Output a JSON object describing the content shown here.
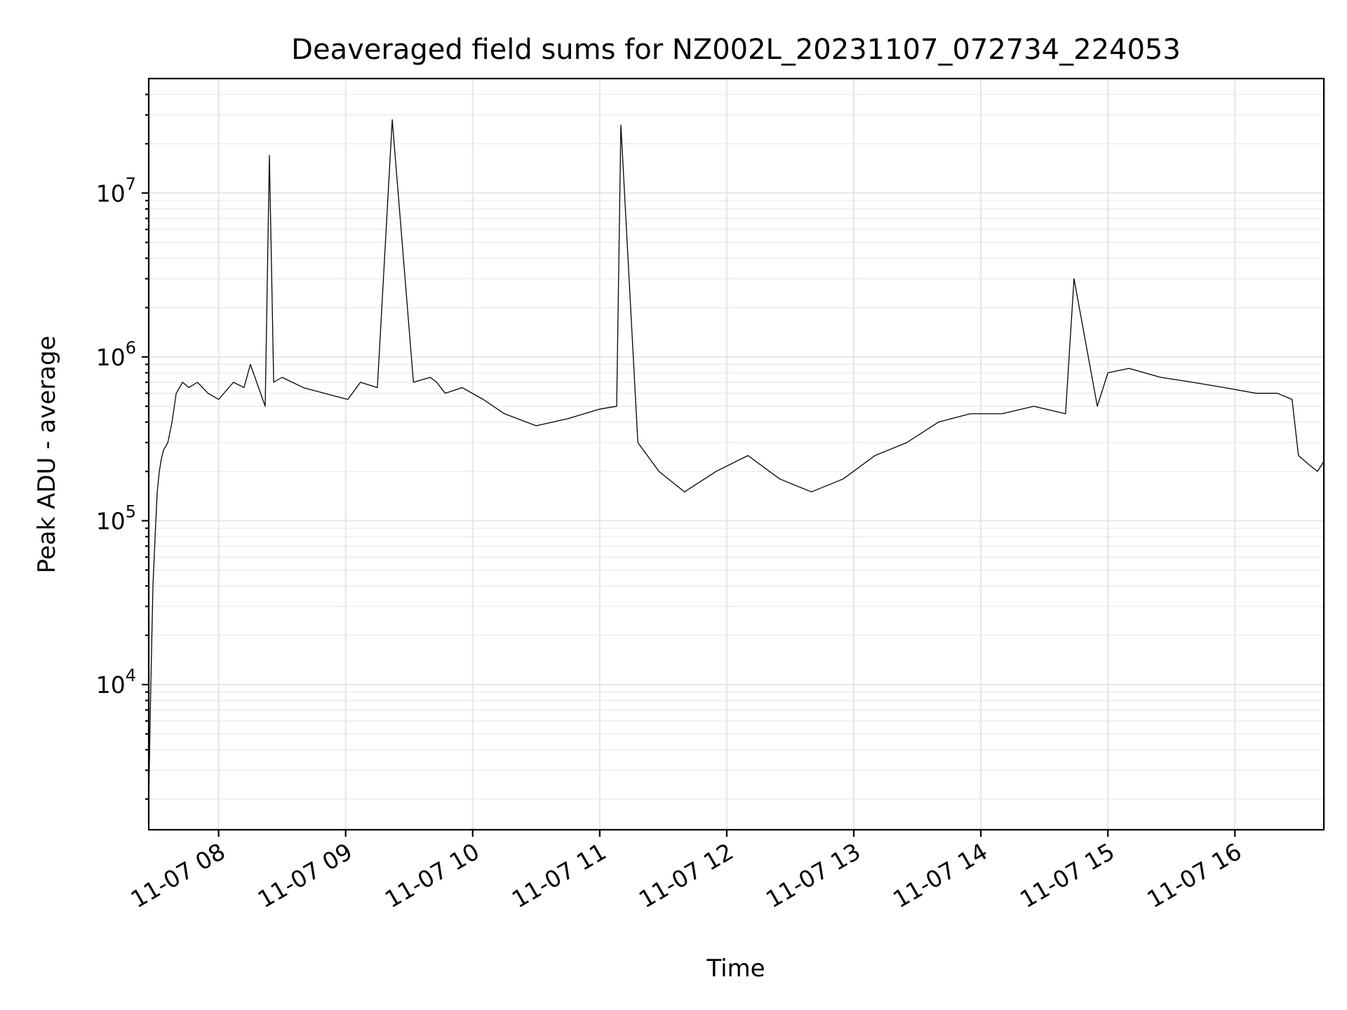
{
  "chart_data": {
    "type": "line",
    "title": "Deaveraged field sums for NZ002L_20231107_072734_224053",
    "xlabel": "Time",
    "ylabel": "Peak ADU - average",
    "yscale": "log",
    "grid": true,
    "x_ticks": [
      {
        "time": "2023-11-07 08:00",
        "label": "11-07 08"
      },
      {
        "time": "2023-11-07 09:00",
        "label": "11-07 09"
      },
      {
        "time": "2023-11-07 10:00",
        "label": "11-07 10"
      },
      {
        "time": "2023-11-07 11:00",
        "label": "11-07 11"
      },
      {
        "time": "2023-11-07 12:00",
        "label": "11-07 12"
      },
      {
        "time": "2023-11-07 13:00",
        "label": "11-07 13"
      },
      {
        "time": "2023-11-07 14:00",
        "label": "11-07 14"
      },
      {
        "time": "2023-11-07 15:00",
        "label": "11-07 15"
      },
      {
        "time": "2023-11-07 16:00",
        "label": "11-07 16"
      }
    ],
    "y_ticks": [
      {
        "value": 10000,
        "base": "10",
        "exp": "4"
      },
      {
        "value": 100000,
        "base": "10",
        "exp": "5"
      },
      {
        "value": 1000000,
        "base": "10",
        "exp": "6"
      },
      {
        "value": 10000000,
        "base": "10",
        "exp": "7"
      }
    ],
    "xlim": [
      "2023-11-07 07:27",
      "2023-11-07 16:42"
    ],
    "ylim": [
      1300,
      50000000
    ],
    "series": [
      {
        "color": "#000000",
        "x": [
          "2023-11-07 07:27",
          "2023-11-07 07:28",
          "2023-11-07 07:29",
          "2023-11-07 07:30",
          "2023-11-07 07:31",
          "2023-11-07 07:32",
          "2023-11-07 07:33",
          "2023-11-07 07:34",
          "2023-11-07 07:36",
          "2023-11-07 07:38",
          "2023-11-07 07:40",
          "2023-11-07 07:43",
          "2023-11-07 07:46",
          "2023-11-07 07:50",
          "2023-11-07 07:55",
          "2023-11-07 08:00",
          "2023-11-07 08:07",
          "2023-11-07 08:12",
          "2023-11-07 08:15",
          "2023-11-07 08:18",
          "2023-11-07 08:22",
          "2023-11-07 08:24",
          "2023-11-07 08:26",
          "2023-11-07 08:30",
          "2023-11-07 08:40",
          "2023-11-07 08:50",
          "2023-11-07 09:01",
          "2023-11-07 09:07",
          "2023-11-07 09:15",
          "2023-11-07 09:22",
          "2023-11-07 09:32",
          "2023-11-07 09:40",
          "2023-11-07 09:43",
          "2023-11-07 09:47",
          "2023-11-07 09:55",
          "2023-11-07 10:05",
          "2023-11-07 10:15",
          "2023-11-07 10:30",
          "2023-11-07 10:45",
          "2023-11-07 11:00",
          "2023-11-07 11:08",
          "2023-11-07 11:10",
          "2023-11-07 11:18",
          "2023-11-07 11:28",
          "2023-11-07 11:40",
          "2023-11-07 11:55",
          "2023-11-07 12:10",
          "2023-11-07 12:25",
          "2023-11-07 12:40",
          "2023-11-07 12:55",
          "2023-11-07 13:10",
          "2023-11-07 13:25",
          "2023-11-07 13:40",
          "2023-11-07 13:55",
          "2023-11-07 14:10",
          "2023-11-07 14:25",
          "2023-11-07 14:40",
          "2023-11-07 14:44",
          "2023-11-07 14:55",
          "2023-11-07 15:00",
          "2023-11-07 15:10",
          "2023-11-07 15:25",
          "2023-11-07 15:40",
          "2023-11-07 15:55",
          "2023-11-07 16:10",
          "2023-11-07 16:20",
          "2023-11-07 16:27",
          "2023-11-07 16:30",
          "2023-11-07 16:35",
          "2023-11-07 16:39",
          "2023-11-07 16:42"
        ],
        "y": [
          2000,
          10000,
          40000,
          80000,
          150000,
          200000,
          240000,
          270000,
          300000,
          400000,
          600000,
          700000,
          650000,
          700000,
          600000,
          550000,
          700000,
          650000,
          900000,
          700000,
          500000,
          17000000,
          700000,
          750000,
          650000,
          600000,
          550000,
          700000,
          650000,
          28000000,
          700000,
          750000,
          700000,
          600000,
          650000,
          550000,
          450000,
          380000,
          420000,
          480000,
          500000,
          26000000,
          300000,
          200000,
          150000,
          200000,
          250000,
          180000,
          150000,
          180000,
          250000,
          300000,
          400000,
          450000,
          450000,
          500000,
          450000,
          3000000,
          500000,
          800000,
          850000,
          750000,
          700000,
          650000,
          600000,
          600000,
          550000,
          250000,
          220000,
          200000,
          230000
        ]
      }
    ]
  }
}
